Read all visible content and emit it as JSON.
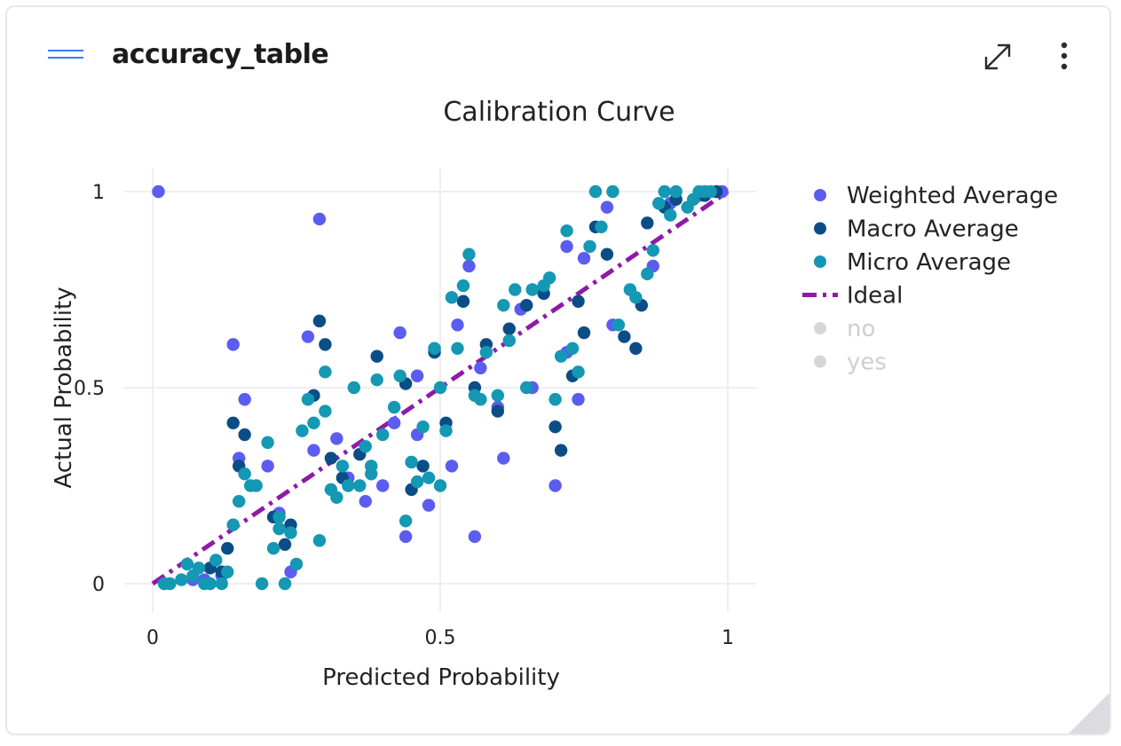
{
  "card": {
    "title": "accuracy_table",
    "menu_icon": "hamburger-icon",
    "expand_icon": "expand-diagonal-icon",
    "more_icon": "more-vertical-icon"
  },
  "chart_data": {
    "type": "scatter",
    "title": "Calibration Curve",
    "xlabel": "Predicted Probability",
    "ylabel": "Actual Probability",
    "xlim": [
      0,
      1
    ],
    "ylim": [
      0,
      1
    ],
    "xticks": [
      "0",
      "0.5",
      "1"
    ],
    "yticks": [
      "0",
      "0.5",
      "1"
    ],
    "grid": true,
    "legend_position": "right",
    "series": [
      {
        "name": "Weighted Average",
        "color": "#5b5cf0",
        "points": [
          [
            0.01,
            1.0
          ],
          [
            0.29,
            0.93
          ],
          [
            0.14,
            0.61
          ],
          [
            0.16,
            0.47
          ],
          [
            0.27,
            0.63
          ],
          [
            0.43,
            0.64
          ],
          [
            0.55,
            0.81
          ],
          [
            0.53,
            0.66
          ],
          [
            0.46,
            0.38
          ],
          [
            0.48,
            0.2
          ],
          [
            0.52,
            0.3
          ],
          [
            0.56,
            0.12
          ],
          [
            0.44,
            0.12
          ],
          [
            0.61,
            0.32
          ],
          [
            0.7,
            0.25
          ],
          [
            0.74,
            0.47
          ],
          [
            0.72,
            0.59
          ],
          [
            0.75,
            0.83
          ],
          [
            0.79,
            0.96
          ],
          [
            0.8,
            0.66
          ],
          [
            0.72,
            0.86
          ],
          [
            0.37,
            0.21
          ],
          [
            0.4,
            0.25
          ],
          [
            0.32,
            0.37
          ],
          [
            0.28,
            0.34
          ],
          [
            0.2,
            0.3
          ],
          [
            0.15,
            0.32
          ],
          [
            0.22,
            0.18
          ],
          [
            0.24,
            0.03
          ],
          [
            0.09,
            0.01
          ],
          [
            0.07,
            0.01
          ],
          [
            0.12,
            0.02
          ],
          [
            0.62,
            0.62
          ],
          [
            0.64,
            0.7
          ],
          [
            0.87,
            0.81
          ],
          [
            0.9,
            0.97
          ],
          [
            0.95,
            0.99
          ],
          [
            0.99,
            1.0
          ],
          [
            0.6,
            0.45
          ],
          [
            0.66,
            0.5
          ],
          [
            0.34,
            0.27
          ],
          [
            0.42,
            0.41
          ],
          [
            0.46,
            0.53
          ],
          [
            0.49,
            0.6
          ],
          [
            0.57,
            0.55
          ]
        ]
      },
      {
        "name": "Macro Average",
        "color": "#0b4d87",
        "points": [
          [
            0.29,
            0.67
          ],
          [
            0.3,
            0.61
          ],
          [
            0.28,
            0.48
          ],
          [
            0.14,
            0.41
          ],
          [
            0.16,
            0.38
          ],
          [
            0.15,
            0.3
          ],
          [
            0.21,
            0.17
          ],
          [
            0.23,
            0.1
          ],
          [
            0.13,
            0.09
          ],
          [
            0.1,
            0.04
          ],
          [
            0.39,
            0.58
          ],
          [
            0.44,
            0.51
          ],
          [
            0.49,
            0.59
          ],
          [
            0.51,
            0.41
          ],
          [
            0.54,
            0.72
          ],
          [
            0.56,
            0.5
          ],
          [
            0.6,
            0.44
          ],
          [
            0.65,
            0.71
          ],
          [
            0.68,
            0.74
          ],
          [
            0.7,
            0.4
          ],
          [
            0.71,
            0.34
          ],
          [
            0.73,
            0.53
          ],
          [
            0.75,
            0.64
          ],
          [
            0.77,
            0.91
          ],
          [
            0.79,
            0.84
          ],
          [
            0.82,
            0.63
          ],
          [
            0.84,
            0.6
          ],
          [
            0.85,
            0.71
          ],
          [
            0.86,
            0.92
          ],
          [
            0.89,
            0.96
          ],
          [
            0.91,
            0.98
          ],
          [
            0.96,
            0.99
          ],
          [
            0.98,
            1.0
          ],
          [
            0.33,
            0.27
          ],
          [
            0.36,
            0.33
          ],
          [
            0.45,
            0.24
          ],
          [
            0.47,
            0.3
          ],
          [
            0.31,
            0.32
          ],
          [
            0.24,
            0.15
          ],
          [
            0.12,
            0.03
          ],
          [
            0.58,
            0.61
          ],
          [
            0.62,
            0.65
          ],
          [
            0.74,
            0.72
          ]
        ]
      },
      {
        "name": "Micro Average",
        "color": "#1498b4",
        "points": [
          [
            0.02,
            0.0
          ],
          [
            0.03,
            0.0
          ],
          [
            0.05,
            0.01
          ],
          [
            0.06,
            0.05
          ],
          [
            0.07,
            0.02
          ],
          [
            0.08,
            0.04
          ],
          [
            0.09,
            0.0
          ],
          [
            0.1,
            0.0
          ],
          [
            0.11,
            0.06
          ],
          [
            0.12,
            0.0
          ],
          [
            0.13,
            0.03
          ],
          [
            0.14,
            0.15
          ],
          [
            0.15,
            0.21
          ],
          [
            0.16,
            0.28
          ],
          [
            0.17,
            0.25
          ],
          [
            0.18,
            0.25
          ],
          [
            0.19,
            0.0
          ],
          [
            0.2,
            0.36
          ],
          [
            0.21,
            0.09
          ],
          [
            0.22,
            0.14
          ],
          [
            0.23,
            0.0
          ],
          [
            0.24,
            0.13
          ],
          [
            0.25,
            0.05
          ],
          [
            0.26,
            0.39
          ],
          [
            0.27,
            0.47
          ],
          [
            0.28,
            0.41
          ],
          [
            0.29,
            0.11
          ],
          [
            0.3,
            0.54
          ],
          [
            0.31,
            0.24
          ],
          [
            0.32,
            0.22
          ],
          [
            0.33,
            0.3
          ],
          [
            0.34,
            0.25
          ],
          [
            0.35,
            0.5
          ],
          [
            0.36,
            0.25
          ],
          [
            0.37,
            0.35
          ],
          [
            0.38,
            0.28
          ],
          [
            0.39,
            0.52
          ],
          [
            0.4,
            0.38
          ],
          [
            0.42,
            0.45
          ],
          [
            0.43,
            0.53
          ],
          [
            0.44,
            0.16
          ],
          [
            0.45,
            0.31
          ],
          [
            0.46,
            0.26
          ],
          [
            0.47,
            0.4
          ],
          [
            0.48,
            0.27
          ],
          [
            0.49,
            0.6
          ],
          [
            0.5,
            0.5
          ],
          [
            0.51,
            0.39
          ],
          [
            0.52,
            0.73
          ],
          [
            0.53,
            0.6
          ],
          [
            0.54,
            0.76
          ],
          [
            0.55,
            0.84
          ],
          [
            0.56,
            0.48
          ],
          [
            0.57,
            0.47
          ],
          [
            0.58,
            0.59
          ],
          [
            0.6,
            0.48
          ],
          [
            0.61,
            0.71
          ],
          [
            0.62,
            0.62
          ],
          [
            0.63,
            0.75
          ],
          [
            0.65,
            0.5
          ],
          [
            0.66,
            0.75
          ],
          [
            0.68,
            0.76
          ],
          [
            0.69,
            0.78
          ],
          [
            0.7,
            0.47
          ],
          [
            0.71,
            0.58
          ],
          [
            0.72,
            0.9
          ],
          [
            0.73,
            0.6
          ],
          [
            0.74,
            0.54
          ],
          [
            0.76,
            0.86
          ],
          [
            0.77,
            1.0
          ],
          [
            0.78,
            0.91
          ],
          [
            0.8,
            1.0
          ],
          [
            0.81,
            0.66
          ],
          [
            0.83,
            0.75
          ],
          [
            0.84,
            0.73
          ],
          [
            0.86,
            0.79
          ],
          [
            0.87,
            0.85
          ],
          [
            0.88,
            0.97
          ],
          [
            0.89,
            1.0
          ],
          [
            0.9,
            0.94
          ],
          [
            0.91,
            1.0
          ],
          [
            0.93,
            0.96
          ],
          [
            0.94,
            0.98
          ],
          [
            0.95,
            1.0
          ],
          [
            0.96,
            1.0
          ],
          [
            0.97,
            1.0
          ],
          [
            0.5,
            0.25
          ],
          [
            0.38,
            0.3
          ],
          [
            0.22,
            0.17
          ],
          [
            0.3,
            0.44
          ]
        ]
      },
      {
        "name": "Ideal",
        "color": "#8e1ba6",
        "style": "dash-dot",
        "points": [
          [
            0,
            0
          ],
          [
            1,
            1
          ]
        ]
      },
      {
        "name": "no",
        "color": "#d0d0d0",
        "hidden": true,
        "points": []
      },
      {
        "name": "yes",
        "color": "#d0d0d0",
        "hidden": true,
        "points": []
      }
    ]
  }
}
